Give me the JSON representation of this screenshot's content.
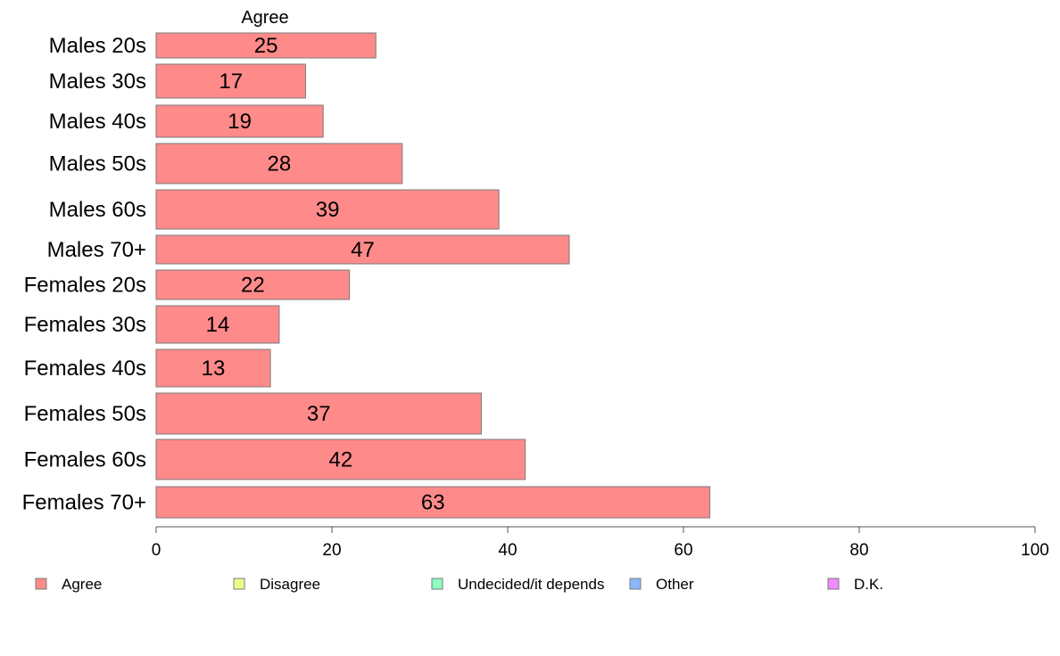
{
  "chart_data": {
    "type": "bar",
    "orientation": "horizontal",
    "column_title": "Agree",
    "categories": [
      "Males 20s",
      "Males 30s",
      "Males 40s",
      "Males 50s",
      "Males 60s",
      "Males 70+",
      "Females 20s",
      "Females 30s",
      "Females 40s",
      "Females 50s",
      "Females 60s",
      "Females 70+"
    ],
    "series": [
      {
        "name": "Agree",
        "values": [
          25,
          17,
          19,
          28,
          39,
          47,
          22,
          14,
          13,
          37,
          42,
          63
        ],
        "color": "#ff8a8a"
      }
    ],
    "value_labels": [
      "25",
      "17",
      "19",
      "28",
      "39",
      "47",
      "22",
      "14",
      "13",
      "37",
      "42",
      "63"
    ],
    "xlim": [
      0,
      100
    ],
    "xticks": [
      0,
      20,
      40,
      60,
      80,
      100
    ],
    "xtick_labels": [
      "0",
      "20",
      "40",
      "60",
      "80",
      "100"
    ],
    "grid": false,
    "legend_position": "bottom",
    "legend": [
      {
        "label": "Agree",
        "color": "#ff8a8a"
      },
      {
        "label": "Disagree",
        "color": "#eaff8a"
      },
      {
        "label": "Undecided/it depends",
        "color": "#8affbe"
      },
      {
        "label": "Other",
        "color": "#8ab8ff"
      },
      {
        "label": "D.K.",
        "color": "#f08aff"
      }
    ]
  }
}
